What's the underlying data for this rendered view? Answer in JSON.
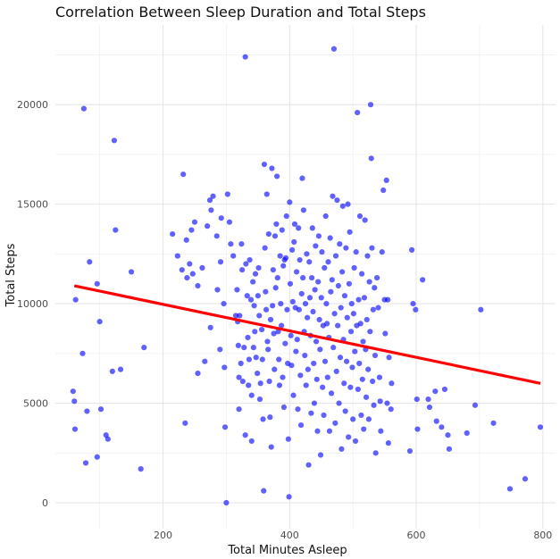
{
  "chart_data": {
    "type": "scatter",
    "title": "Correlation Between Sleep Duration and Total Steps",
    "xlabel": "Total Minutes Asleep",
    "ylabel": "Total Steps",
    "xlim": [
      30,
      820
    ],
    "ylim": [
      -1300,
      24000
    ],
    "x_ticks": [
      200,
      400,
      600,
      800
    ],
    "y_ticks": [
      0,
      5000,
      10000,
      15000,
      20000
    ],
    "grid": true,
    "legend": "none",
    "point_color": "#0000ff",
    "trend_line_color": "#ff0000",
    "trend_line": {
      "x": [
        60,
        796
      ],
      "y": [
        10900,
        6000
      ]
    },
    "points": [
      [
        58,
        5600
      ],
      [
        60,
        5100
      ],
      [
        61,
        3700
      ],
      [
        62,
        10200
      ],
      [
        73,
        7500
      ],
      [
        75,
        19800
      ],
      [
        78,
        2000
      ],
      [
        80,
        4600
      ],
      [
        84,
        12100
      ],
      [
        96,
        11000
      ],
      [
        96,
        2300
      ],
      [
        100,
        9100
      ],
      [
        102,
        4700
      ],
      [
        110,
        3400
      ],
      [
        113,
        3200
      ],
      [
        120,
        6600
      ],
      [
        123,
        18200
      ],
      [
        125,
        13700
      ],
      [
        133,
        6700
      ],
      [
        150,
        11600
      ],
      [
        165,
        1700
      ],
      [
        170,
        7800
      ],
      [
        215,
        13500
      ],
      [
        223,
        12400
      ],
      [
        230,
        11700
      ],
      [
        232,
        16500
      ],
      [
        235,
        4000
      ],
      [
        237,
        13200
      ],
      [
        238,
        11300
      ],
      [
        242,
        12000
      ],
      [
        245,
        13700
      ],
      [
        247,
        11500
      ],
      [
        250,
        14100
      ],
      [
        255,
        10900
      ],
      [
        255,
        6500
      ],
      [
        262,
        11800
      ],
      [
        266,
        7100
      ],
      [
        270,
        13900
      ],
      [
        274,
        15200
      ],
      [
        275,
        8800
      ],
      [
        276,
        14700
      ],
      [
        279,
        15400
      ],
      [
        285,
        13400
      ],
      [
        286,
        10700
      ],
      [
        290,
        7700
      ],
      [
        291,
        12100
      ],
      [
        292,
        14300
      ],
      [
        296,
        10000
      ],
      [
        297,
        6800
      ],
      [
        298,
        3800
      ],
      [
        300,
        0
      ],
      [
        302,
        15500
      ],
      [
        305,
        14100
      ],
      [
        307,
        13000
      ],
      [
        311,
        12400
      ],
      [
        315,
        9400
      ],
      [
        317,
        10700
      ],
      [
        318,
        9100
      ],
      [
        319,
        7900
      ],
      [
        320,
        6300
      ],
      [
        320,
        4700
      ],
      [
        321,
        9400
      ],
      [
        323,
        7000
      ],
      [
        324,
        13000
      ],
      [
        325,
        11700
      ],
      [
        326,
        6100
      ],
      [
        328,
        7800
      ],
      [
        330,
        22400
      ],
      [
        330,
        3400
      ],
      [
        331,
        12000
      ],
      [
        333,
        10400
      ],
      [
        334,
        8300
      ],
      [
        335,
        5900
      ],
      [
        336,
        7200
      ],
      [
        337,
        12200
      ],
      [
        339,
        10200
      ],
      [
        340,
        5400
      ],
      [
        340,
        3100
      ],
      [
        342,
        11100
      ],
      [
        343,
        7800
      ],
      [
        344,
        9900
      ],
      [
        345,
        8600
      ],
      [
        346,
        11500
      ],
      [
        347,
        7300
      ],
      [
        349,
        6500
      ],
      [
        350,
        10400
      ],
      [
        351,
        11800
      ],
      [
        352,
        9400
      ],
      [
        353,
        5200
      ],
      [
        354,
        6000
      ],
      [
        356,
        8700
      ],
      [
        357,
        7200
      ],
      [
        358,
        4200
      ],
      [
        359,
        600
      ],
      [
        360,
        17000
      ],
      [
        361,
        12800
      ],
      [
        362,
        10600
      ],
      [
        363,
        9700
      ],
      [
        364,
        15500
      ],
      [
        365,
        8100
      ],
      [
        366,
        7700
      ],
      [
        367,
        13500
      ],
      [
        368,
        6100
      ],
      [
        369,
        4300
      ],
      [
        370,
        9200
      ],
      [
        371,
        2800
      ],
      [
        372,
        16800
      ],
      [
        373,
        9900
      ],
      [
        374,
        11700
      ],
      [
        375,
        8500
      ],
      [
        376,
        6700
      ],
      [
        377,
        13400
      ],
      [
        378,
        10800
      ],
      [
        379,
        14000
      ],
      [
        380,
        16400
      ],
      [
        381,
        11300
      ],
      [
        382,
        8600
      ],
      [
        383,
        7200
      ],
      [
        384,
        5900
      ],
      [
        385,
        12400
      ],
      [
        386,
        10000
      ],
      [
        387,
        8900
      ],
      [
        388,
        13700
      ],
      [
        389,
        6300
      ],
      [
        390,
        11900
      ],
      [
        391,
        4800
      ],
      [
        392,
        12200
      ],
      [
        393,
        8000
      ],
      [
        394,
        12300
      ],
      [
        395,
        14400
      ],
      [
        396,
        9700
      ],
      [
        397,
        7000
      ],
      [
        398,
        3200
      ],
      [
        399,
        300
      ],
      [
        400,
        15100
      ],
      [
        401,
        11000
      ],
      [
        402,
        8400
      ],
      [
        403,
        6900
      ],
      [
        404,
        12700
      ],
      [
        405,
        10100
      ],
      [
        406,
        5400
      ],
      [
        407,
        13100
      ],
      [
        408,
        14000
      ],
      [
        409,
        9800
      ],
      [
        410,
        7600
      ],
      [
        411,
        11600
      ],
      [
        412,
        8200
      ],
      [
        413,
        4700
      ],
      [
        414,
        13800
      ],
      [
        415,
        9700
      ],
      [
        416,
        12200
      ],
      [
        417,
        6400
      ],
      [
        418,
        3900
      ],
      [
        419,
        10500
      ],
      [
        420,
        16300
      ],
      [
        421,
        11300
      ],
      [
        422,
        14700
      ],
      [
        423,
        8600
      ],
      [
        424,
        7400
      ],
      [
        425,
        10000
      ],
      [
        426,
        5900
      ],
      [
        427,
        12500
      ],
      [
        428,
        9300
      ],
      [
        429,
        6700
      ],
      [
        430,
        1900
      ],
      [
        431,
        12100
      ],
      [
        432,
        10300
      ],
      [
        433,
        8400
      ],
      [
        434,
        4500
      ],
      [
        435,
        11300
      ],
      [
        436,
        13800
      ],
      [
        437,
        9600
      ],
      [
        438,
        7000
      ],
      [
        439,
        5000
      ],
      [
        440,
        10700
      ],
      [
        441,
        12900
      ],
      [
        442,
        8100
      ],
      [
        443,
        6200
      ],
      [
        444,
        3600
      ],
      [
        445,
        11100
      ],
      [
        446,
        13400
      ],
      [
        447,
        9200
      ],
      [
        448,
        7700
      ],
      [
        449,
        2400
      ],
      [
        450,
        10300
      ],
      [
        451,
        12600
      ],
      [
        452,
        5800
      ],
      [
        453,
        8900
      ],
      [
        454,
        4400
      ],
      [
        455,
        11800
      ],
      [
        456,
        7100
      ],
      [
        457,
        14400
      ],
      [
        458,
        10000
      ],
      [
        459,
        9000
      ],
      [
        460,
        6300
      ],
      [
        461,
        12100
      ],
      [
        462,
        8300
      ],
      [
        463,
        3600
      ],
      [
        464,
        13300
      ],
      [
        465,
        10600
      ],
      [
        466,
        5500
      ],
      [
        467,
        11200
      ],
      [
        468,
        15400
      ],
      [
        469,
        7800
      ],
      [
        470,
        22800
      ],
      [
        471,
        9500
      ],
      [
        472,
        4000
      ],
      [
        473,
        12400
      ],
      [
        474,
        6600
      ],
      [
        475,
        15200
      ],
      [
        476,
        8900
      ],
      [
        477,
        10900
      ],
      [
        478,
        5000
      ],
      [
        479,
        13000
      ],
      [
        480,
        7300
      ],
      [
        481,
        9800
      ],
      [
        482,
        2700
      ],
      [
        483,
        11600
      ],
      [
        484,
        14900
      ],
      [
        485,
        8200
      ],
      [
        486,
        6000
      ],
      [
        487,
        10400
      ],
      [
        488,
        4600
      ],
      [
        489,
        12800
      ],
      [
        490,
        7100
      ],
      [
        491,
        9300
      ],
      [
        492,
        15000
      ],
      [
        493,
        3300
      ],
      [
        494,
        11000
      ],
      [
        495,
        13600
      ],
      [
        496,
        5800
      ],
      [
        497,
        8600
      ],
      [
        498,
        10000
      ],
      [
        499,
        6800
      ],
      [
        500,
        4200
      ],
      [
        501,
        9500
      ],
      [
        502,
        11800
      ],
      [
        503,
        7600
      ],
      [
        504,
        3100
      ],
      [
        505,
        12600
      ],
      [
        506,
        8900
      ],
      [
        507,
        19600
      ],
      [
        508,
        5700
      ],
      [
        509,
        10200
      ],
      [
        510,
        7000
      ],
      [
        511,
        14400
      ],
      [
        512,
        9000
      ],
      [
        513,
        4400
      ],
      [
        514,
        11500
      ],
      [
        515,
        6200
      ],
      [
        516,
        8100
      ],
      [
        517,
        3700
      ],
      [
        518,
        10300
      ],
      [
        519,
        14200
      ],
      [
        520,
        7700
      ],
      [
        521,
        5300
      ],
      [
        522,
        9200
      ],
      [
        523,
        12400
      ],
      [
        524,
        6700
      ],
      [
        525,
        4200
      ],
      [
        526,
        11100
      ],
      [
        527,
        8600
      ],
      [
        528,
        20000
      ],
      [
        529,
        17300
      ],
      [
        530,
        12800
      ],
      [
        531,
        6100
      ],
      [
        532,
        9700
      ],
      [
        533,
        4900
      ],
      [
        534,
        10800
      ],
      [
        535,
        7400
      ],
      [
        536,
        2500
      ],
      [
        538,
        11300
      ],
      [
        540,
        9800
      ],
      [
        542,
        6300
      ],
      [
        543,
        5100
      ],
      [
        544,
        3600
      ],
      [
        546,
        12600
      ],
      [
        548,
        15700
      ],
      [
        550,
        10200
      ],
      [
        551,
        8500
      ],
      [
        553,
        16200
      ],
      [
        554,
        5000
      ],
      [
        555,
        10200
      ],
      [
        556,
        3000
      ],
      [
        557,
        7300
      ],
      [
        560,
        4700
      ],
      [
        561,
        6000
      ],
      [
        590,
        2600
      ],
      [
        593,
        12700
      ],
      [
        595,
        10000
      ],
      [
        599,
        9700
      ],
      [
        601,
        5200
      ],
      [
        602,
        3700
      ],
      [
        610,
        11200
      ],
      [
        619,
        5200
      ],
      [
        621,
        4800
      ],
      [
        630,
        5600
      ],
      [
        632,
        4100
      ],
      [
        640,
        3800
      ],
      [
        645,
        5700
      ],
      [
        650,
        3400
      ],
      [
        652,
        2700
      ],
      [
        680,
        3500
      ],
      [
        693,
        4900
      ],
      [
        702,
        9700
      ],
      [
        722,
        4000
      ],
      [
        748,
        700
      ],
      [
        772,
        1200
      ],
      [
        796,
        3800
      ]
    ]
  }
}
